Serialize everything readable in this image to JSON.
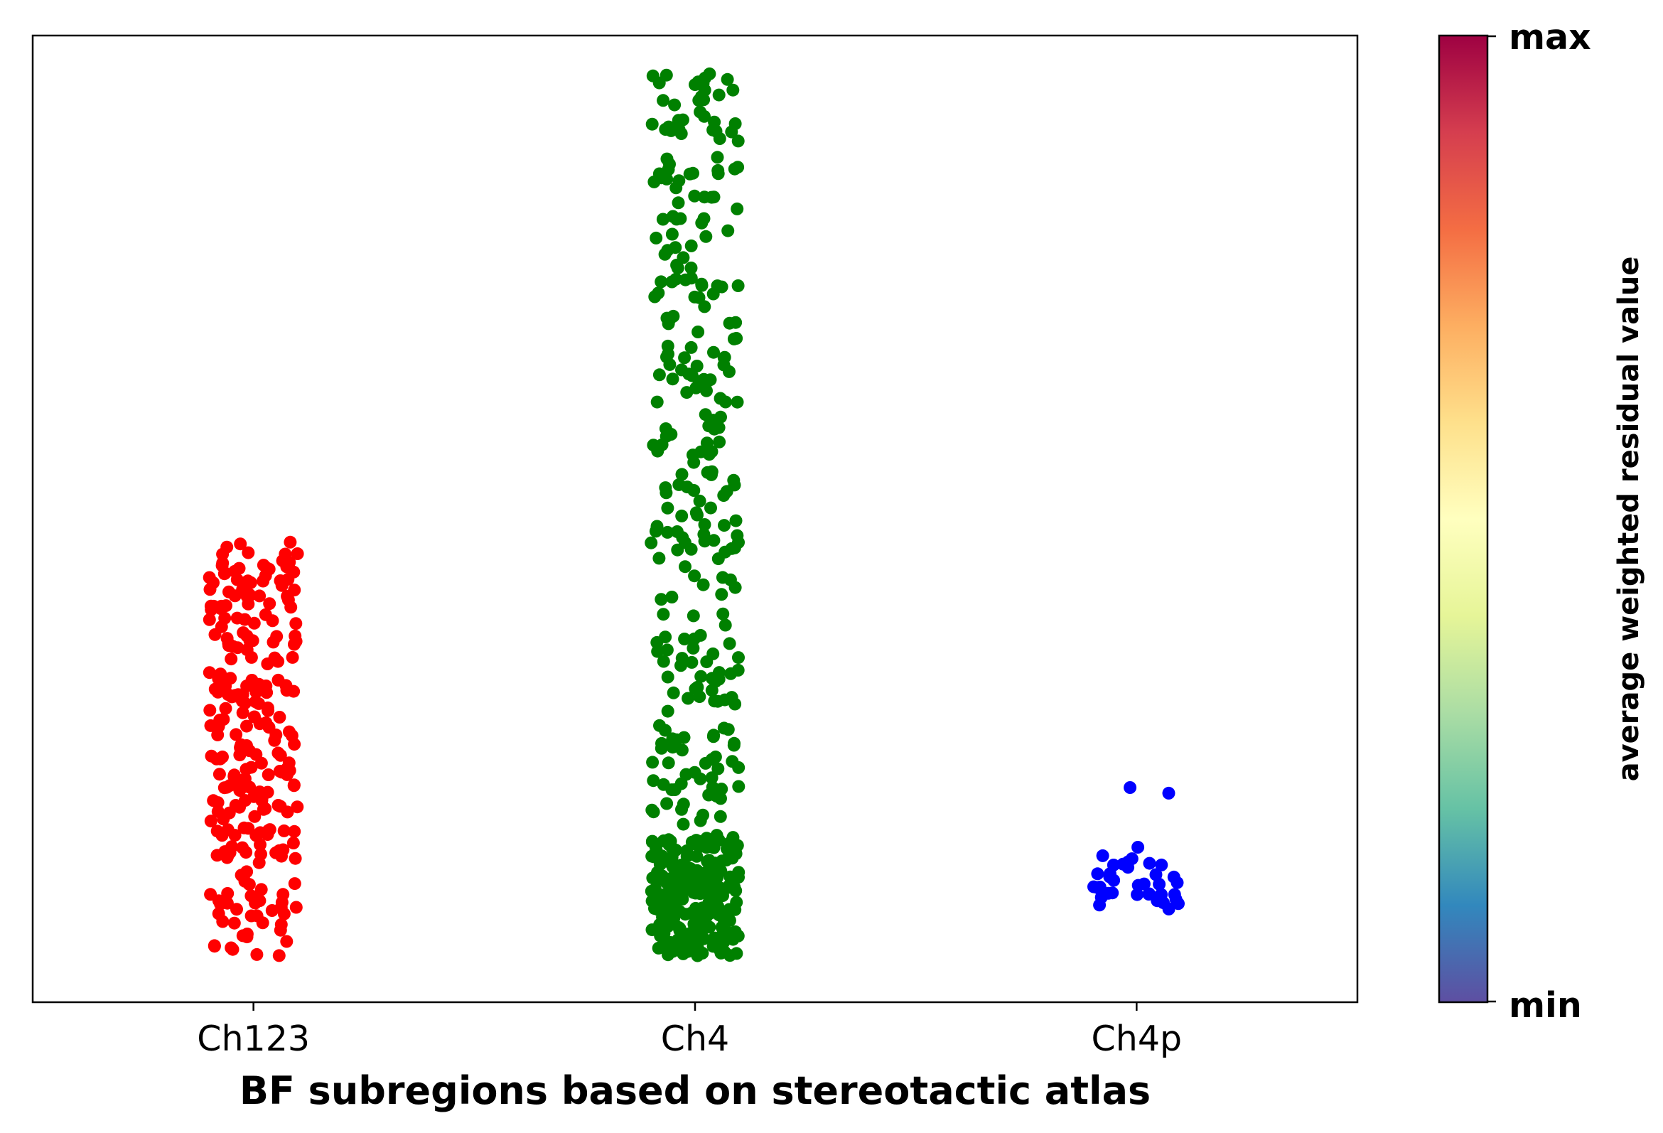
{
  "chart_data": {
    "type": "scatter",
    "style": "strip plot with horizontal jitter",
    "xlabel": "BF subregions based on stereotactic atlas",
    "ylabel": "",
    "categories": [
      "Ch123",
      "Ch4",
      "Ch4p"
    ],
    "y_axis_ticks": "none",
    "ylim": [
      -0.05,
      1.0
    ],
    "grid": false,
    "series": [
      {
        "category": "Ch123",
        "color": "#ff0000",
        "count": 260,
        "y_min": 0.0,
        "y_max": 0.505,
        "dense_range": [
          0.0,
          0.45
        ]
      },
      {
        "category": "Ch4",
        "color": "#008000",
        "count": 500,
        "y_min": 0.0,
        "y_max": 0.96,
        "dense_range": [
          0.0,
          0.13
        ]
      },
      {
        "category": "Ch4p",
        "color": "#0000ff",
        "count": 40,
        "y_min": 0.045,
        "y_max": 0.21,
        "dense_range": [
          0.05,
          0.11
        ]
      }
    ],
    "colorbar": {
      "colormap": "Spectral_r",
      "label": "average weighted residual value",
      "tick_labels": {
        "top": "max",
        "bottom": "min"
      },
      "colors": [
        "#5e4fa2",
        "#3288bd",
        "#66c2a5",
        "#abdda4",
        "#e6f598",
        "#ffffbf",
        "#fee08b",
        "#fdae61",
        "#f46d43",
        "#d53e4f",
        "#9e0142"
      ]
    }
  }
}
